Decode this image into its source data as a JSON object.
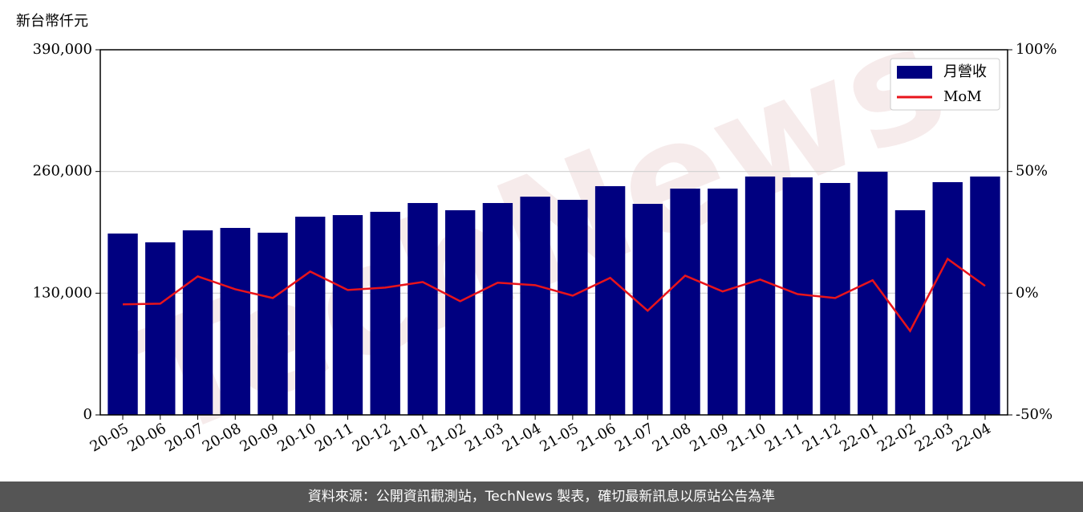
{
  "chart_data": {
    "type": "bar_line",
    "unit_label": "新台幣仟元",
    "watermark": "TechNews",
    "categories": [
      "20-05",
      "20-06",
      "20-07",
      "20-08",
      "20-09",
      "20-10",
      "20-11",
      "20-12",
      "21-01",
      "21-02",
      "21-03",
      "21-04",
      "21-05",
      "21-06",
      "21-07",
      "21-08",
      "21-09",
      "21-10",
      "21-11",
      "21-12",
      "22-01",
      "22-02",
      "22-03",
      "22-04"
    ],
    "series": [
      {
        "name": "月營收",
        "type": "bar",
        "color": "#000080",
        "axis": "y",
        "values": [
          193700,
          184300,
          197100,
          199700,
          194600,
          211700,
          213400,
          216900,
          226300,
          218600,
          226300,
          233100,
          229700,
          244300,
          225400,
          241700,
          241700,
          254600,
          253700,
          247700,
          259700,
          218600,
          248600,
          254600
        ]
      },
      {
        "name": "MoM",
        "type": "line",
        "color": "#e8141b",
        "axis": "y2",
        "values": [
          -4.6,
          -4.3,
          6.9,
          1.6,
          -2.0,
          8.9,
          1.3,
          2.3,
          4.6,
          -3.3,
          4.3,
          3.3,
          -1.0,
          6.3,
          -7.2,
          7.2,
          0.7,
          5.6,
          -0.4,
          -2.0,
          5.3,
          -15.5,
          14.1,
          3.0
        ]
      }
    ],
    "ylim": [
      0,
      390000
    ],
    "yticks": [
      {
        "value": 0,
        "label": "0"
      },
      {
        "value": 130000,
        "label": "130,000"
      },
      {
        "value": 260000,
        "label": "260,000"
      },
      {
        "value": 390000,
        "label": "390,000"
      }
    ],
    "y2lim": [
      -50,
      100
    ],
    "y2ticks": [
      {
        "value": -50,
        "label": "-50%"
      },
      {
        "value": 0,
        "label": "0%"
      },
      {
        "value": 50,
        "label": "50%"
      },
      {
        "value": 100,
        "label": "100%"
      }
    ],
    "grid": true,
    "legend": "upper right"
  },
  "footer": "資料來源：公開資訊觀測站，TechNews 製表，確切最新訊息以原站公告為準"
}
